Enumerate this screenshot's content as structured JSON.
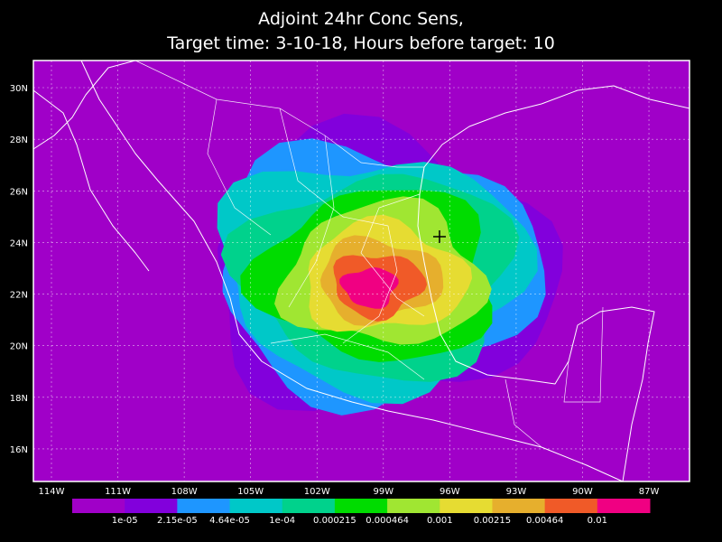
{
  "title": [
    "Adjoint 24hr Conc Sens,",
    "Target time: 3-10-18, Hours before target: 10"
  ],
  "lat_labels": [
    "30N",
    "28N",
    "26N",
    "24N",
    "22N",
    "20N",
    "18N",
    "16N"
  ],
  "lon_labels": [
    "114W",
    "111W",
    "108W",
    "105W",
    "102W",
    "99W",
    "96W",
    "93W",
    "90W",
    "87W"
  ],
  "colorbar": {
    "colors": [
      "#a000c8",
      "#8200dc",
      "#1e96ff",
      "#00c8c8",
      "#00d28c",
      "#00dc00",
      "#a0e632",
      "#e6dc32",
      "#e6af2d",
      "#f05a28",
      "#f00082"
    ],
    "labels": [
      "1e-05",
      "2.15e-05",
      "4.64e-05",
      "1e-04",
      "0.000215",
      "0.000464",
      "0.001",
      "0.00215",
      "0.00464",
      "0.01"
    ]
  }
}
